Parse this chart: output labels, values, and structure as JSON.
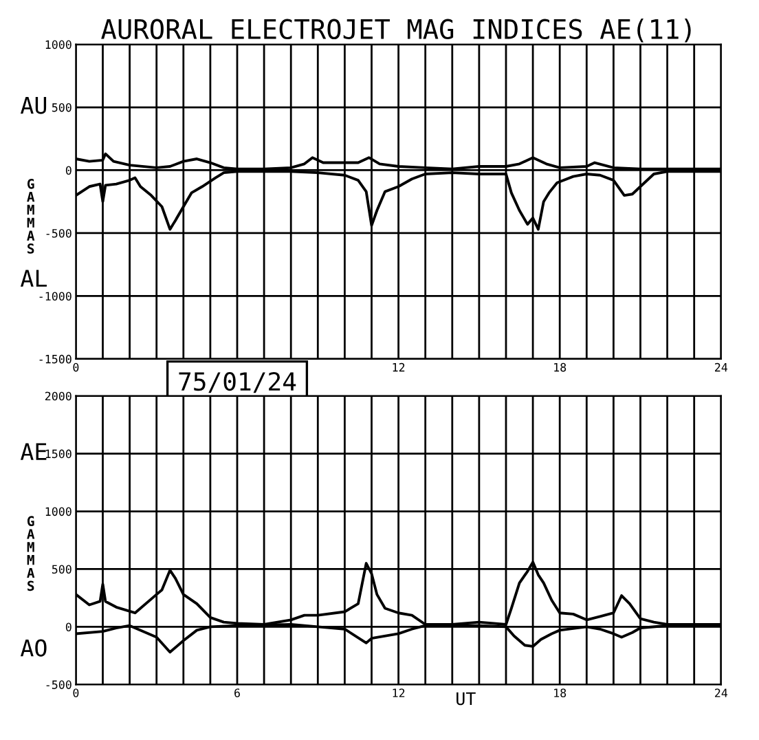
{
  "chart_data": [
    {
      "type": "line",
      "title": "AURORAL ELECTROJET MAG INDICES AE(11)",
      "ylabel": "GAMMAS",
      "annotations": [
        "AU",
        "AL",
        "75/01/24"
      ],
      "xlim": [
        0,
        24
      ],
      "ylim": [
        -1500,
        1000
      ],
      "xticks": [
        0,
        {
          "value": 1,
          "label": null
        },
        {
          "value": 2,
          "label": null
        },
        {
          "value": 3,
          "label": null
        },
        {
          "value": 4,
          "label": null
        },
        {
          "value": 5,
          "label": null
        },
        {
          "value": 6,
          "label": null
        },
        {
          "value": 7,
          "label": null
        },
        {
          "value": 8,
          "label": null
        },
        {
          "value": 9,
          "label": null
        },
        {
          "value": 10,
          "label": null
        },
        {
          "value": 11,
          "label": null
        },
        12,
        {
          "value": 13,
          "label": null
        },
        {
          "value": 14,
          "label": null
        },
        {
          "value": 15,
          "label": null
        },
        {
          "value": 16,
          "label": null
        },
        {
          "value": 17,
          "label": null
        },
        18,
        {
          "value": 19,
          "label": null
        },
        {
          "value": 20,
          "label": null
        },
        {
          "value": 21,
          "label": null
        },
        {
          "value": 22,
          "label": null
        },
        {
          "value": 23,
          "label": null
        },
        24
      ],
      "yticks": [
        -1500,
        -1000,
        -500,
        0,
        500,
        1000
      ],
      "grid": true,
      "series": [
        {
          "color": "#000000",
          "x": [
            0,
            0.5,
            1.0,
            1.1,
            1.4,
            2,
            3,
            3.5,
            4,
            4.5,
            5,
            5.5,
            6,
            7,
            8,
            8.5,
            8.8,
            9.2,
            10,
            10.5,
            10.9,
            11.3,
            12,
            13,
            14,
            15,
            16,
            16.5,
            17,
            17.5,
            18,
            19,
            19.3,
            20,
            21,
            22,
            24
          ],
          "values": [
            90,
            70,
            80,
            130,
            70,
            40,
            20,
            30,
            70,
            90,
            60,
            20,
            10,
            10,
            20,
            50,
            100,
            60,
            60,
            60,
            100,
            50,
            30,
            20,
            10,
            30,
            30,
            50,
            100,
            50,
            20,
            30,
            60,
            20,
            10,
            10,
            10
          ]
        },
        {
          "color": "#000000",
          "x": [
            0,
            0.5,
            0.9,
            1.0,
            1.1,
            1.5,
            2,
            2.2,
            2.4,
            2.8,
            3.2,
            3.5,
            3.7,
            4,
            4.3,
            4.7,
            5.2,
            5.5,
            6,
            8,
            9,
            10,
            10.5,
            10.8,
            11.0,
            11.2,
            11.5,
            12,
            12.5,
            13,
            14,
            15,
            16,
            16.2,
            16.5,
            16.8,
            17,
            17.2,
            17.4,
            17.6,
            17.9,
            18.5,
            19,
            19.5,
            20,
            20.4,
            20.7,
            21,
            21.5,
            22,
            24
          ],
          "values": [
            -200,
            -130,
            -110,
            -250,
            -120,
            -110,
            -80,
            -60,
            -130,
            -200,
            -290,
            -470,
            -400,
            -290,
            -180,
            -130,
            -60,
            -20,
            -10,
            -10,
            -20,
            -40,
            -80,
            -170,
            -440,
            -320,
            -170,
            -130,
            -70,
            -30,
            -20,
            -30,
            -30,
            -180,
            -320,
            -430,
            -380,
            -470,
            -250,
            -180,
            -100,
            -50,
            -30,
            -40,
            -80,
            -200,
            -190,
            -130,
            -30,
            -10,
            -10
          ]
        }
      ]
    },
    {
      "type": "line",
      "xlabel": "UT",
      "ylabel": "GAMMAS",
      "annotations": [
        "AE",
        "AO"
      ],
      "xlim": [
        0,
        24
      ],
      "ylim": [
        -500,
        2000
      ],
      "xticks": [
        0,
        {
          "value": 1,
          "label": null
        },
        {
          "value": 2,
          "label": null
        },
        {
          "value": 3,
          "label": null
        },
        {
          "value": 4,
          "label": null
        },
        {
          "value": 5,
          "label": null
        },
        6,
        {
          "value": 7,
          "label": null
        },
        {
          "value": 8,
          "label": null
        },
        {
          "value": 9,
          "label": null
        },
        {
          "value": 10,
          "label": null
        },
        {
          "value": 11,
          "label": null
        },
        12,
        {
          "value": 13,
          "label": null
        },
        {
          "value": 14,
          "label": null
        },
        {
          "value": 15,
          "label": null
        },
        {
          "value": 16,
          "label": null
        },
        {
          "value": 17,
          "label": null
        },
        18,
        {
          "value": 19,
          "label": null
        },
        {
          "value": 20,
          "label": null
        },
        {
          "value": 21,
          "label": null
        },
        {
          "value": 22,
          "label": null
        },
        {
          "value": 23,
          "label": null
        },
        24
      ],
      "yticks": [
        -500,
        0,
        500,
        1000,
        1500,
        2000
      ],
      "grid": true,
      "series": [
        {
          "color": "#000000",
          "x": [
            0,
            0.5,
            0.9,
            1.0,
            1.1,
            1.5,
            2.2,
            3,
            3.2,
            3.5,
            3.7,
            4,
            4.5,
            5,
            5.5,
            6,
            7,
            8,
            8.5,
            9,
            10,
            10.5,
            10.8,
            11,
            11.2,
            11.5,
            12,
            12.5,
            13,
            14,
            15,
            16,
            16.2,
            16.5,
            16.8,
            17.0,
            17.2,
            17.4,
            17.7,
            18,
            18.5,
            19,
            19.5,
            20,
            20.3,
            20.6,
            21,
            21.5,
            22,
            24
          ],
          "values": [
            280,
            190,
            220,
            370,
            220,
            170,
            120,
            280,
            320,
            490,
            420,
            280,
            200,
            80,
            40,
            30,
            20,
            60,
            100,
            100,
            130,
            200,
            550,
            460,
            280,
            160,
            120,
            100,
            20,
            20,
            40,
            20,
            160,
            380,
            480,
            560,
            450,
            380,
            230,
            120,
            110,
            60,
            90,
            120,
            270,
            200,
            70,
            40,
            20,
            20
          ]
        },
        {
          "color": "#000000",
          "x": [
            0,
            1.0,
            1.5,
            2,
            3,
            3.5,
            4,
            4.5,
            5,
            6,
            8,
            9,
            10,
            10.8,
            11,
            12,
            12.5,
            13,
            15,
            16,
            16.3,
            16.7,
            17,
            17.3,
            17.7,
            18,
            19,
            19.5,
            20,
            20.3,
            20.7,
            21,
            22,
            24
          ],
          "values": [
            -60,
            -40,
            -10,
            10,
            -90,
            -220,
            -120,
            -30,
            0,
            10,
            20,
            0,
            -20,
            -140,
            -100,
            -60,
            -20,
            10,
            10,
            0,
            -80,
            -160,
            -170,
            -110,
            -60,
            -30,
            0,
            -20,
            -60,
            -90,
            -50,
            -10,
            10,
            10
          ]
        }
      ]
    }
  ]
}
